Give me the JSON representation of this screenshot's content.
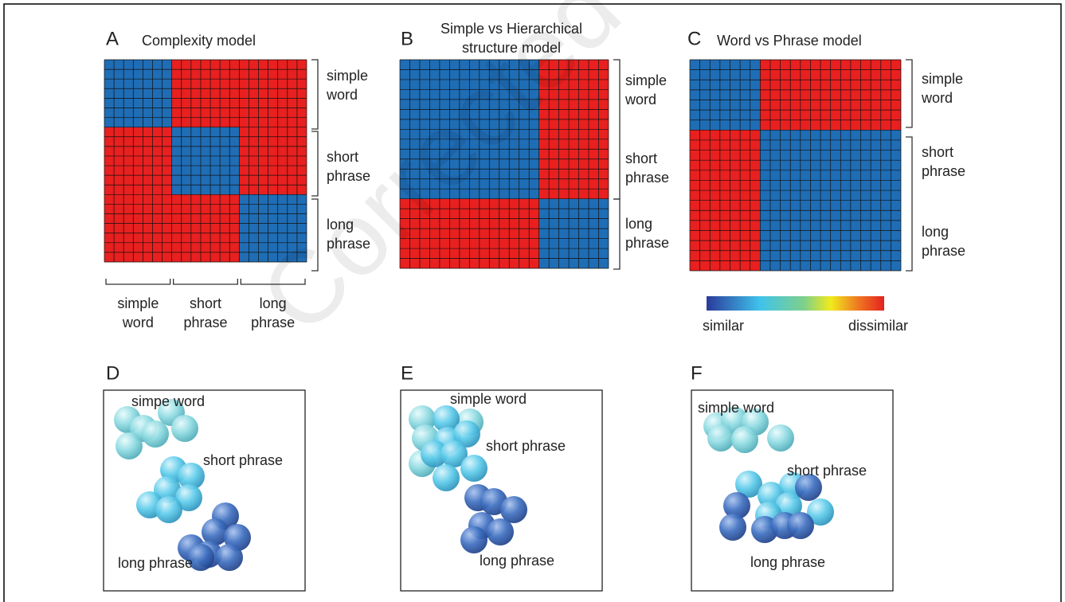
{
  "watermark": "Corrected",
  "panels": [
    {
      "letter": "A",
      "title": [
        "Complexity model"
      ],
      "row_labels": [
        [
          "simple",
          "word"
        ],
        [
          "short",
          "phrase"
        ],
        [
          "long",
          "phrase"
        ]
      ],
      "column_labels": [
        [
          "simple",
          "word"
        ],
        [
          "short",
          "phrase"
        ],
        [
          "long",
          "phrase"
        ]
      ]
    },
    {
      "letter": "B",
      "title": [
        "Simple vs Hierarchical",
        "structure model"
      ],
      "row_labels": [
        [
          "simple",
          "word"
        ],
        [
          "short",
          "phrase"
        ],
        [
          "long",
          "phrase"
        ]
      ]
    },
    {
      "letter": "C",
      "title": [
        "Word vs Phrase model"
      ],
      "row_labels": [
        [
          "simple",
          "word"
        ],
        [
          "short",
          "phrase"
        ],
        [
          "long",
          "phrase"
        ]
      ]
    }
  ],
  "colorbar": {
    "min_label": "similar",
    "max_label": "dissimilar"
  },
  "scatter_panels": [
    {
      "letter": "D",
      "labels": [
        "simpe word",
        "short phrase",
        "long phrase"
      ]
    },
    {
      "letter": "E",
      "labels": [
        "simple word",
        "short phrase",
        "long phrase"
      ]
    },
    {
      "letter": "F",
      "labels": [
        "simple word",
        "short phrase",
        "long phrase"
      ]
    }
  ]
}
